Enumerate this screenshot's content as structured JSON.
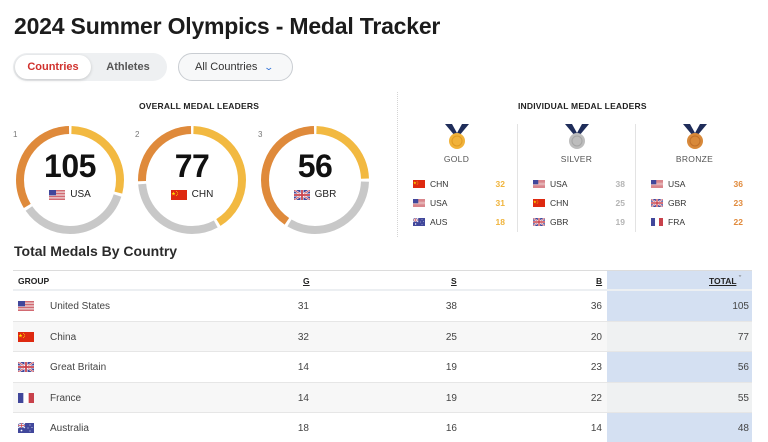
{
  "header": {
    "title": "2024 Summer Olympics - Medal Tracker"
  },
  "toggle": {
    "options": [
      {
        "label": "Countries",
        "active": true
      },
      {
        "label": "Athletes",
        "active": false
      }
    ]
  },
  "filter": {
    "selected": "All Countries",
    "icon": "chevron-down-icon"
  },
  "overall": {
    "label": "OVERALL MEDAL LEADERS",
    "leaders": [
      {
        "rank": "1",
        "total": "105",
        "code": "USA",
        "gold": 31,
        "silver": 38,
        "bronze": 36
      },
      {
        "rank": "2",
        "total": "77",
        "code": "CHN",
        "gold": 32,
        "silver": 25,
        "bronze": 20
      },
      {
        "rank": "3",
        "total": "56",
        "code": "GBR",
        "gold": 14,
        "silver": 19,
        "bronze": 23
      }
    ]
  },
  "individual": {
    "label": "INDIVIDUAL MEDAL LEADERS",
    "columns": [
      {
        "label": "GOLD",
        "color": "#f0b43c",
        "rows": [
          {
            "code": "CHN",
            "value": "32"
          },
          {
            "code": "USA",
            "value": "31"
          },
          {
            "code": "AUS",
            "value": "18"
          }
        ]
      },
      {
        "label": "SILVER",
        "color": "#b4b4b4",
        "rows": [
          {
            "code": "USA",
            "value": "38"
          },
          {
            "code": "CHN",
            "value": "25"
          },
          {
            "code": "GBR",
            "value": "19"
          }
        ]
      },
      {
        "label": "BRONZE",
        "color": "#e08a3c",
        "rows": [
          {
            "code": "USA",
            "value": "36"
          },
          {
            "code": "GBR",
            "value": "23"
          },
          {
            "code": "FRA",
            "value": "22"
          }
        ]
      }
    ]
  },
  "table": {
    "title": "Total Medals By Country",
    "headers": {
      "group": "GROUP",
      "g": "G",
      "s": "S",
      "b": "B",
      "total": "TOTAL"
    },
    "sort_icon": "chevron-down-icon",
    "rows": [
      {
        "flag": "USA",
        "country": "United States",
        "g": "31",
        "s": "38",
        "b": "36",
        "total": "105"
      },
      {
        "flag": "CHN",
        "country": "China",
        "g": "32",
        "s": "25",
        "b": "20",
        "total": "77"
      },
      {
        "flag": "GBR",
        "country": "Great Britain",
        "g": "14",
        "s": "19",
        "b": "23",
        "total": "56"
      },
      {
        "flag": "FRA",
        "country": "France",
        "g": "14",
        "s": "19",
        "b": "22",
        "total": "55"
      },
      {
        "flag": "AUS",
        "country": "Australia",
        "g": "18",
        "s": "16",
        "b": "14",
        "total": "48"
      }
    ]
  },
  "colors": {
    "gold": "#f2b941",
    "silver": "#c8c8c8",
    "bronze": "#df8a3b",
    "accent": "#d0312d",
    "total_column": "#d4e0f2"
  }
}
